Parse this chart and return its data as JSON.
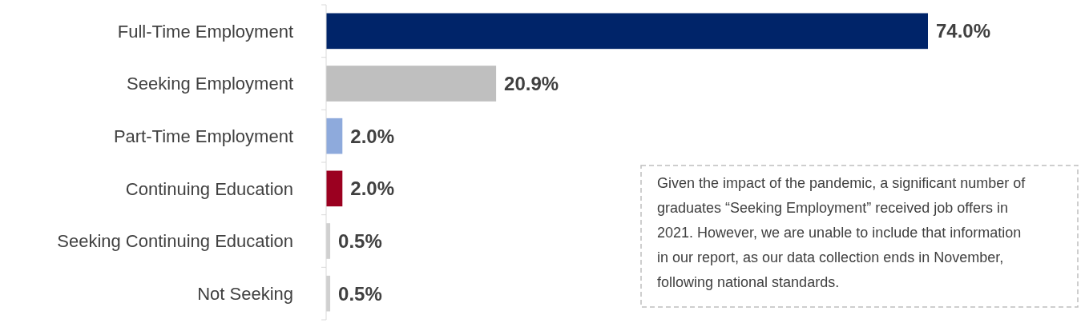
{
  "chart_data": {
    "type": "bar",
    "orientation": "horizontal",
    "categories": [
      "Full-Time Employment",
      "Seeking Employment",
      "Part-Time Employment",
      "Continuing Education",
      "Seeking Continuing Education",
      "Not Seeking"
    ],
    "values": [
      74.0,
      20.9,
      2.0,
      2.0,
      0.5,
      0.5
    ],
    "colors": [
      "#002469",
      "#bfbfbf",
      "#8eaadc",
      "#9b0020",
      "#d0d0d0",
      "#d0d0d0"
    ],
    "value_labels": [
      "74.0%",
      "20.9%",
      "2.0%",
      "2.0%",
      "0.5%",
      "0.5%"
    ],
    "annotations": [
      "Given the impact of the pandemic, a significant number of graduates “Seeking Employment” received job offers in 2021. However, we are unable to include that information in our report, as our data collection ends in November, following national standards."
    ],
    "legend": false
  }
}
